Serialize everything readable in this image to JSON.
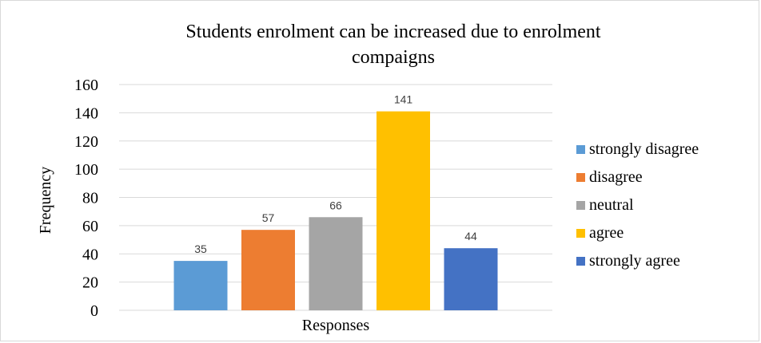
{
  "chart_data": {
    "type": "bar",
    "title_lines": [
      "Students  enrolment can be increased due to enrolment",
      "compaigns"
    ],
    "xlabel": "Responses",
    "ylabel": "Frequency",
    "ylim": [
      0,
      160
    ],
    "yticks": [
      0,
      20,
      40,
      60,
      80,
      100,
      120,
      140,
      160
    ],
    "grid": true,
    "legend_position": "right",
    "series": [
      {
        "name": "strongly disagree",
        "value": 35,
        "color": "#5b9bd5"
      },
      {
        "name": "disagree",
        "value": 57,
        "color": "#ed7d31"
      },
      {
        "name": "neutral",
        "value": 66,
        "color": "#a5a5a5"
      },
      {
        "name": "agree",
        "value": 141,
        "color": "#ffc000"
      },
      {
        "name": "strongly agree",
        "value": 44,
        "color": "#4472c4"
      }
    ]
  }
}
